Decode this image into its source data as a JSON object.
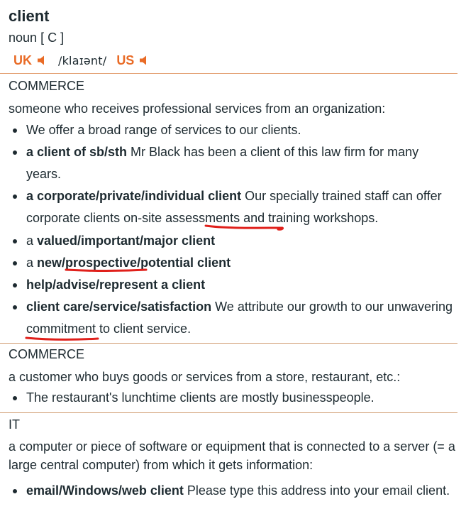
{
  "entry": {
    "headword": "client",
    "pos": "noun",
    "grammar": "[ C ]",
    "pron": {
      "uk_label": "UK",
      "us_label": "US",
      "ipa": "klaɪənt",
      "slash_open": "/",
      "slash_close": "/"
    }
  },
  "senses": [
    {
      "domain": "COMMERCE",
      "definition": "someone who receives professional services from an organization:",
      "examples": [
        {
          "bold": "",
          "text": "We offer a broad range of services to our clients."
        },
        {
          "bold": "a client of sb/sth",
          "text": " Mr Black has been a client of this law firm for many years."
        },
        {
          "bold": "a corporate/private/individual client",
          "text": " Our specially trained staff can offer corporate clients on-site assessments and training workshops."
        },
        {
          "pre": "a ",
          "bold": "valued/important/major client",
          "text": ""
        },
        {
          "pre": "a ",
          "bold": "new/prospective/potential client",
          "text": ""
        },
        {
          "bold": "help/advise/represent a client",
          "text": ""
        },
        {
          "bold": "client care/service/satisfaction",
          "text": " We attribute our growth to our unwavering commitment to client service."
        }
      ]
    },
    {
      "domain": "COMMERCE",
      "definition": "a customer who buys goods or services from a store, restaurant, etc.:",
      "examples": [
        {
          "bold": "",
          "text": "The restaurant's lunchtime clients are mostly businesspeople."
        }
      ]
    },
    {
      "domain": "IT",
      "definition": "a computer or piece of software or equipment that is connected to a server (= a large central computer) from which it gets information:",
      "examples": [
        {
          "bold": "email/Windows/web client",
          "text": " Please type this address into your email client."
        }
      ]
    }
  ],
  "colors": {
    "accent": "#e96b26",
    "rule": "#d09b6e",
    "text": "#1d2a30",
    "annotation": "#e0201b"
  },
  "icons": {
    "speaker": "speaker-icon"
  }
}
